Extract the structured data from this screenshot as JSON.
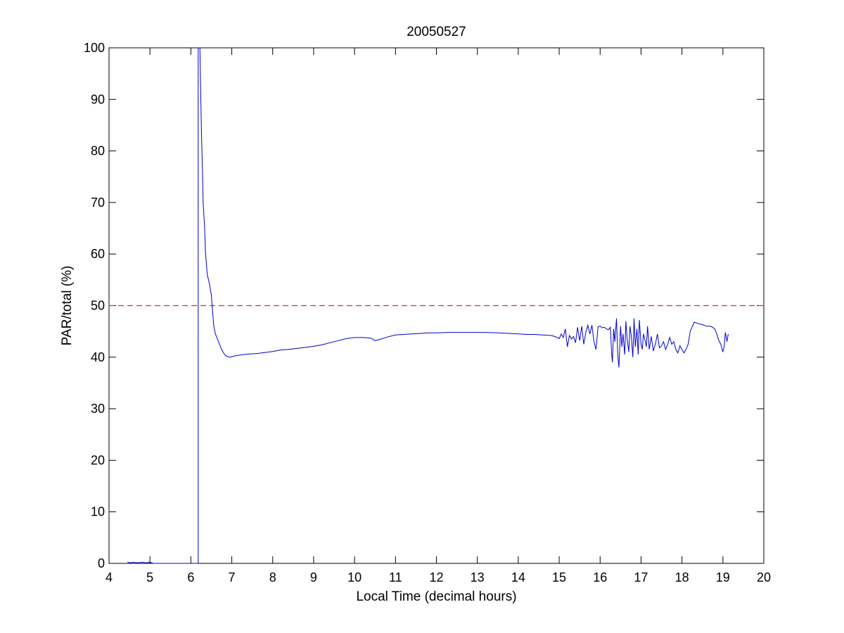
{
  "chart_data": {
    "type": "line",
    "title": "20050527",
    "xlabel": "Local Time (decimal hours)",
    "ylabel": "PAR/total (%)",
    "xlim": [
      4,
      20
    ],
    "ylim": [
      0,
      100
    ],
    "xticks": [
      "4",
      "5",
      "6",
      "7",
      "8",
      "9",
      "10",
      "11",
      "12",
      "13",
      "14",
      "15",
      "16",
      "17",
      "18",
      "19",
      "20"
    ],
    "yticks": [
      "0",
      "10",
      "20",
      "30",
      "40",
      "50",
      "60",
      "70",
      "80",
      "90",
      "100"
    ],
    "grid": false,
    "legend": "none",
    "colors": {
      "series": "#0000cc",
      "reference": "#cc3333",
      "axes": "#000000"
    },
    "reference_line": {
      "y": 50,
      "style": "dashed"
    },
    "series": [
      {
        "x": [
          4.45,
          4.5,
          4.6,
          4.7,
          4.8,
          4.9,
          5.0,
          5.05,
          5.08,
          6.18,
          6.18,
          6.18,
          6.2,
          6.22,
          6.24,
          6.26,
          6.28,
          6.3,
          6.33,
          6.36,
          6.4,
          6.43,
          6.46,
          6.5,
          6.53,
          6.56,
          6.6,
          6.65,
          6.7,
          6.75,
          6.8,
          6.85,
          6.9,
          6.95,
          7.0,
          7.1,
          7.2,
          7.3,
          7.4,
          7.6,
          7.8,
          8.0,
          8.2,
          8.4,
          8.6,
          8.8,
          9.0,
          9.2,
          9.4,
          9.6,
          9.8,
          10.0,
          10.2,
          10.4,
          10.5,
          10.6,
          10.8,
          11.0,
          11.2,
          11.4,
          11.6,
          11.8,
          12.0,
          12.3,
          12.6,
          12.9,
          13.2,
          13.5,
          13.8,
          14.0,
          14.2,
          14.4,
          14.6,
          14.8,
          14.9,
          15.0,
          15.05,
          15.1,
          15.15,
          15.2,
          15.25,
          15.3,
          15.35,
          15.4,
          15.45,
          15.5,
          15.55,
          15.6,
          15.65,
          15.7,
          15.75,
          15.8,
          15.85,
          15.9,
          15.95,
          16.0,
          16.05,
          16.1,
          16.15,
          16.2,
          16.25,
          16.28,
          16.3,
          16.33,
          16.36,
          16.4,
          16.43,
          16.46,
          16.5,
          16.53,
          16.56,
          16.6,
          16.63,
          16.66,
          16.7,
          16.73,
          16.76,
          16.8,
          16.83,
          16.86,
          16.9,
          16.93,
          16.96,
          17.0,
          17.03,
          17.06,
          17.1,
          17.13,
          17.16,
          17.2,
          17.25,
          17.3,
          17.35,
          17.4,
          17.45,
          17.5,
          17.55,
          17.6,
          17.65,
          17.7,
          17.75,
          17.8,
          17.85,
          17.9,
          17.95,
          18.0,
          18.05,
          18.1,
          18.15,
          18.2,
          18.3,
          18.4,
          18.5,
          18.6,
          18.7,
          18.8,
          18.85,
          18.9,
          18.95,
          19.0,
          19.03,
          19.06,
          19.1,
          19.13
        ],
        "y": [
          0.3,
          0.1,
          0.2,
          0.1,
          0.2,
          0.1,
          0.2,
          0.1,
          0.0,
          0.0,
          100,
          100,
          102,
          100,
          92,
          83,
          77,
          70,
          66,
          60,
          56,
          55,
          54,
          52,
          49,
          46,
          44.5,
          43.5,
          42.5,
          41.5,
          40.8,
          40.3,
          40.1,
          40.0,
          40.1,
          40.3,
          40.4,
          40.5,
          40.6,
          40.7,
          40.9,
          41.1,
          41.4,
          41.5,
          41.7,
          41.9,
          42.1,
          42.4,
          42.8,
          43.2,
          43.6,
          43.8,
          43.8,
          43.7,
          43.2,
          43.4,
          43.9,
          44.3,
          44.4,
          44.5,
          44.6,
          44.7,
          44.7,
          44.8,
          44.8,
          44.8,
          44.8,
          44.7,
          44.6,
          44.5,
          44.4,
          44.4,
          44.3,
          44.2,
          44.0,
          43.6,
          44.5,
          43.8,
          45.5,
          42.0,
          44.2,
          43.5,
          44.0,
          42.8,
          45.8,
          43.2,
          46.0,
          42.5,
          44.8,
          46.2,
          44.5,
          46.2,
          43.0,
          41.5,
          45.9,
          46.0,
          45.7,
          45.8,
          45.5,
          45.3,
          45.8,
          41.0,
          39.0,
          45.5,
          43.0,
          47.5,
          40.5,
          38.0,
          46.0,
          42.0,
          44.5,
          40.5,
          47.0,
          43.5,
          41.0,
          46.0,
          44.2,
          40.0,
          47.5,
          42.0,
          45.5,
          40.5,
          47.2,
          42.5,
          41.5,
          44.5,
          43.2,
          42.0,
          46.0,
          41.5,
          44.0,
          41.2,
          42.5,
          44.5,
          41.8,
          42.2,
          43.0,
          41.5,
          42.5,
          43.8,
          42.5,
          43.0,
          41.5,
          40.8,
          42.2,
          41.5,
          40.8,
          41.5,
          42.5,
          45.0,
          46.8,
          46.5,
          46.3,
          46.0,
          46.0,
          45.5,
          44.5,
          43.2,
          42.5,
          41.0,
          42.0,
          44.8,
          43.0,
          44.5
        ]
      }
    ]
  }
}
